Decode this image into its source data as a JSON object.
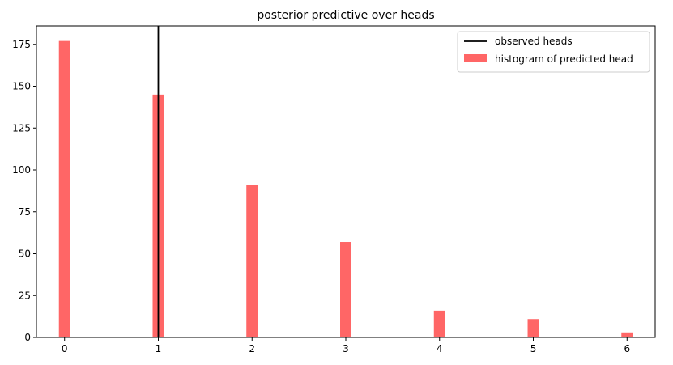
{
  "chart_data": {
    "type": "bar",
    "title": "posterior predictive over heads",
    "xlabel": "",
    "ylabel": "",
    "x": [
      0,
      1,
      2,
      3,
      4,
      5,
      6
    ],
    "series": [
      {
        "name": "histogram of predicted head",
        "values": [
          177,
          145,
          91,
          57,
          16,
          11,
          3
        ],
        "color": "#ff6666"
      }
    ],
    "reference_line": {
      "name": "observed heads",
      "x": 1,
      "color": "#000000"
    },
    "xlim": [
      -0.3,
      6.3
    ],
    "ylim": [
      0,
      186
    ],
    "xticks": [
      0,
      1,
      2,
      3,
      4,
      5,
      6
    ],
    "yticks": [
      0,
      25,
      50,
      75,
      100,
      125,
      150,
      175
    ],
    "grid": false,
    "legend_position": "top-right"
  }
}
